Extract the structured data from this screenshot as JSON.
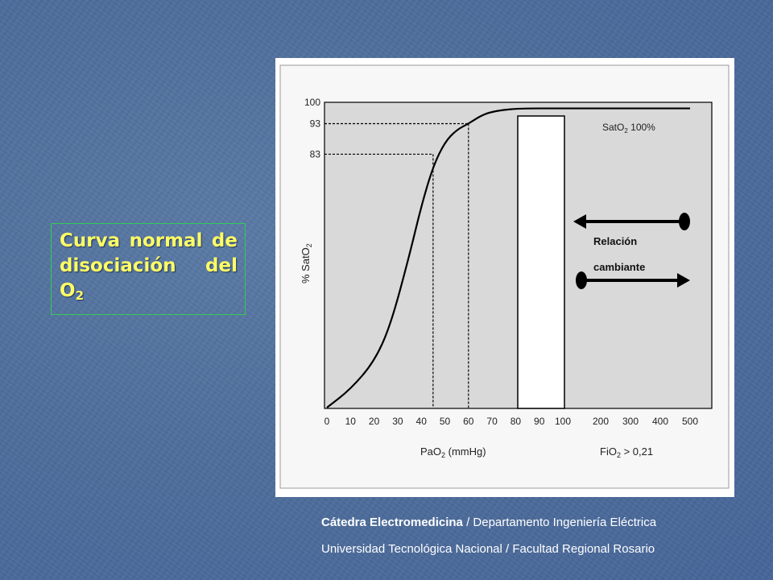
{
  "slide": {
    "title_main": "Curva normal de disociación del O",
    "title_sub": "2",
    "footer_line1_bold": "Cátedra Electromedicina",
    "footer_line1_rest": " / Departamento Ingeniería Eléctrica",
    "footer_line2": "Universidad Tecnológica Nacional / Facultad Regional Rosario"
  },
  "chart_data": {
    "type": "line",
    "title": "",
    "ylabel": "% SatO",
    "ylabel_sub": "2",
    "ylim": [
      0,
      100
    ],
    "y_ticks": [
      "100",
      "93",
      "83"
    ],
    "x_ticks_pao2": [
      "0",
      "10",
      "20",
      "30",
      "40",
      "50",
      "60",
      "70",
      "80",
      "90",
      "100"
    ],
    "x_ticks_fio2": [
      "200",
      "300",
      "400",
      "500"
    ],
    "xlabel_left": "PaO",
    "xlabel_left_sub": "2",
    "xlabel_left_unit": " (mmHg)",
    "xlabel_right": "FiO",
    "xlabel_right_sub": "2",
    "xlabel_right_rest": " > 0,21",
    "curve": {
      "x": [
        0,
        10,
        20,
        27,
        35,
        40,
        45,
        50,
        55,
        60,
        65,
        70,
        80,
        100,
        200,
        300,
        400,
        500
      ],
      "y": [
        0,
        6,
        15,
        27,
        50,
        66,
        79,
        87,
        91,
        93,
        95.5,
        97,
        98,
        98,
        98,
        98,
        98,
        98
      ]
    },
    "reference_lines": [
      {
        "pao2": 45,
        "sat": 83
      },
      {
        "pao2": 60,
        "sat": 93
      }
    ],
    "annotations": {
      "sat_label": "SatO",
      "sat_label_sub": "2",
      "sat_label_rest": " 100%",
      "relation_line1": "Relación",
      "relation_line2": "cambiante"
    },
    "grid": false,
    "legend": "none",
    "colors": {
      "plot_bg": "#d9d9d9",
      "line": "#000000",
      "gap": "#ffffff"
    }
  }
}
